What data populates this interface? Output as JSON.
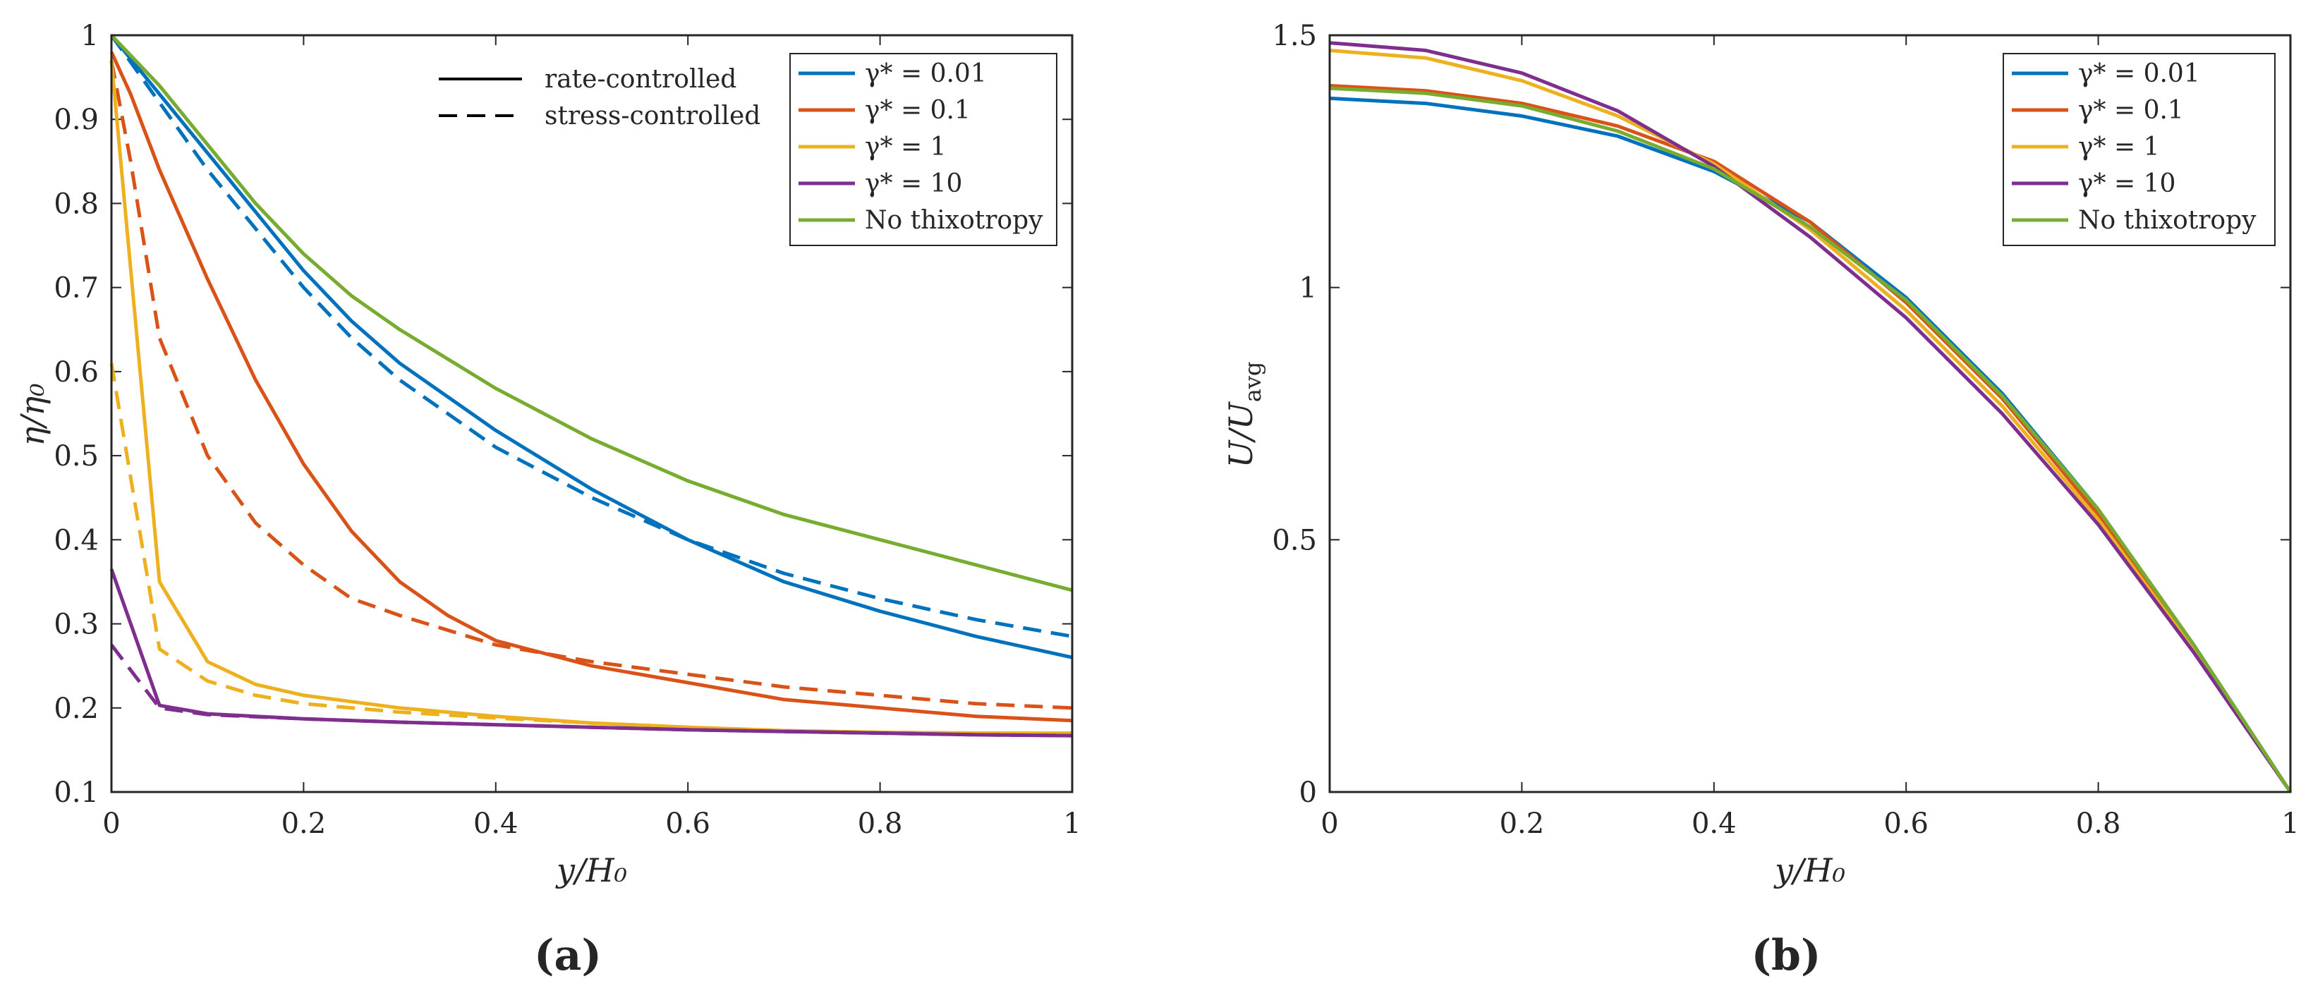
{
  "chart_data": [
    {
      "type": "line",
      "panel_label": "(a)",
      "xlabel": "y/H₀",
      "ylabel": "η/η₀",
      "xlim": [
        0,
        1
      ],
      "ylim": [
        0.1,
        1
      ],
      "xticks": [
        "0",
        "0.2",
        "0.4",
        "0.6",
        "0.8",
        "1"
      ],
      "yticks": [
        "0.1",
        "0.2",
        "0.3",
        "0.4",
        "0.5",
        "0.6",
        "0.7",
        "0.8",
        "0.9",
        "1"
      ],
      "style_legend": [
        {
          "label": "rate-controlled",
          "dash": "solid"
        },
        {
          "label": "stress-controlled",
          "dash": "dashed"
        }
      ],
      "legend": [
        "γ* = 0.01",
        "γ* = 0.1",
        "γ* = 1",
        "γ* = 10",
        "No thixotropy"
      ],
      "series": [
        {
          "name": "γ* = 0.01",
          "mode": "rate-controlled",
          "color": "#0072BD",
          "dash": "solid",
          "x": [
            0,
            0.05,
            0.1,
            0.15,
            0.2,
            0.25,
            0.3,
            0.4,
            0.5,
            0.6,
            0.7,
            0.8,
            0.9,
            1.0
          ],
          "y": [
            1.0,
            0.93,
            0.86,
            0.79,
            0.72,
            0.66,
            0.61,
            0.53,
            0.46,
            0.4,
            0.35,
            0.315,
            0.285,
            0.26
          ]
        },
        {
          "name": "γ* = 0.01",
          "mode": "stress-controlled",
          "color": "#0072BD",
          "dash": "dashed",
          "x": [
            0,
            0.05,
            0.1,
            0.15,
            0.2,
            0.25,
            0.3,
            0.4,
            0.5,
            0.6,
            0.7,
            0.8,
            0.9,
            1.0
          ],
          "y": [
            1.0,
            0.92,
            0.84,
            0.77,
            0.7,
            0.64,
            0.59,
            0.51,
            0.45,
            0.4,
            0.36,
            0.33,
            0.305,
            0.285
          ]
        },
        {
          "name": "γ* = 0.1",
          "mode": "rate-controlled",
          "color": "#D95319",
          "dash": "solid",
          "x": [
            0,
            0.02,
            0.05,
            0.1,
            0.15,
            0.2,
            0.25,
            0.3,
            0.35,
            0.4,
            0.5,
            0.6,
            0.7,
            0.8,
            0.9,
            1.0
          ],
          "y": [
            0.98,
            0.93,
            0.84,
            0.71,
            0.59,
            0.49,
            0.41,
            0.35,
            0.31,
            0.28,
            0.25,
            0.23,
            0.21,
            0.2,
            0.19,
            0.185
          ]
        },
        {
          "name": "γ* = 0.1",
          "mode": "stress-controlled",
          "color": "#D95319",
          "dash": "dashed",
          "x": [
            0,
            0.02,
            0.05,
            0.1,
            0.15,
            0.2,
            0.25,
            0.3,
            0.4,
            0.5,
            0.6,
            0.7,
            0.8,
            0.9,
            1.0
          ],
          "y": [
            0.97,
            0.85,
            0.64,
            0.5,
            0.42,
            0.37,
            0.33,
            0.31,
            0.275,
            0.255,
            0.24,
            0.225,
            0.215,
            0.205,
            0.2
          ]
        },
        {
          "name": "γ* = 1",
          "mode": "rate-controlled",
          "color": "#EDB120",
          "dash": "solid",
          "x": [
            0,
            0.05,
            0.1,
            0.15,
            0.2,
            0.3,
            0.4,
            0.5,
            0.6,
            0.7,
            0.8,
            0.9,
            1.0
          ],
          "y": [
            0.97,
            0.35,
            0.255,
            0.228,
            0.215,
            0.2,
            0.19,
            0.182,
            0.177,
            0.173,
            0.171,
            0.17,
            0.17
          ]
        },
        {
          "name": "γ* = 1",
          "mode": "stress-controlled",
          "color": "#EDB120",
          "dash": "dashed",
          "x": [
            0,
            0.05,
            0.1,
            0.15,
            0.2,
            0.3,
            0.4,
            0.5,
            0.6,
            0.7,
            0.8,
            0.9,
            1.0
          ],
          "y": [
            0.61,
            0.27,
            0.232,
            0.215,
            0.205,
            0.195,
            0.188,
            0.182,
            0.177,
            0.173,
            0.171,
            0.17,
            0.17
          ]
        },
        {
          "name": "γ* = 10",
          "mode": "rate-controlled",
          "color": "#7E2F8E",
          "dash": "solid",
          "x": [
            0,
            0.05,
            0.1,
            0.2,
            0.3,
            0.4,
            0.5,
            0.6,
            0.7,
            0.8,
            0.9,
            1.0
          ],
          "y": [
            0.365,
            0.203,
            0.193,
            0.187,
            0.183,
            0.18,
            0.177,
            0.174,
            0.172,
            0.17,
            0.168,
            0.167
          ]
        },
        {
          "name": "γ* = 10",
          "mode": "stress-controlled",
          "color": "#7E2F8E",
          "dash": "dashed",
          "x": [
            0,
            0.05,
            0.1,
            0.2,
            0.3,
            0.4,
            0.5,
            0.6,
            0.7,
            0.8,
            0.9,
            1.0
          ],
          "y": [
            0.275,
            0.2,
            0.192,
            0.187,
            0.183,
            0.18,
            0.177,
            0.174,
            0.172,
            0.17,
            0.168,
            0.167
          ]
        },
        {
          "name": "No thixotropy",
          "mode": "rate-controlled",
          "color": "#77AC30",
          "dash": "solid",
          "x": [
            0,
            0.05,
            0.1,
            0.15,
            0.2,
            0.25,
            0.3,
            0.4,
            0.5,
            0.6,
            0.7,
            0.8,
            0.9,
            1.0
          ],
          "y": [
            1.0,
            0.94,
            0.87,
            0.8,
            0.74,
            0.69,
            0.65,
            0.58,
            0.52,
            0.47,
            0.43,
            0.4,
            0.37,
            0.34
          ]
        }
      ]
    },
    {
      "type": "line",
      "panel_label": "(b)",
      "xlabel": "y/H₀",
      "ylabel": "U/U",
      "ylabel_subscript": "avg",
      "xlim": [
        0,
        1
      ],
      "ylim": [
        0,
        1.5
      ],
      "xticks": [
        "0",
        "0.2",
        "0.4",
        "0.6",
        "0.8",
        "1"
      ],
      "yticks": [
        "0",
        "0.5",
        "1",
        "1.5"
      ],
      "legend": [
        "γ* = 0.01",
        "γ* = 0.1",
        "γ* = 1",
        "γ* = 10",
        "No thixotropy"
      ],
      "series": [
        {
          "name": "γ* = 0.01",
          "color": "#0072BD",
          "x": [
            0,
            0.1,
            0.2,
            0.3,
            0.4,
            0.5,
            0.6,
            0.7,
            0.8,
            0.9,
            1.0
          ],
          "y": [
            1.375,
            1.365,
            1.34,
            1.3,
            1.23,
            1.13,
            0.98,
            0.79,
            0.56,
            0.29,
            0.0
          ]
        },
        {
          "name": "γ* = 0.1",
          "color": "#D95319",
          "x": [
            0,
            0.1,
            0.2,
            0.3,
            0.4,
            0.5,
            0.6,
            0.7,
            0.8,
            0.9,
            1.0
          ],
          "y": [
            1.4,
            1.39,
            1.365,
            1.32,
            1.25,
            1.13,
            0.97,
            0.78,
            0.55,
            0.285,
            0.0
          ]
        },
        {
          "name": "γ* = 1",
          "color": "#EDB120",
          "x": [
            0,
            0.1,
            0.2,
            0.3,
            0.4,
            0.5,
            0.6,
            0.7,
            0.8,
            0.9,
            1.0
          ],
          "y": [
            1.47,
            1.455,
            1.41,
            1.34,
            1.245,
            1.115,
            0.955,
            0.765,
            0.54,
            0.28,
            0.0
          ]
        },
        {
          "name": "γ* = 10",
          "color": "#7E2F8E",
          "x": [
            0,
            0.1,
            0.2,
            0.3,
            0.4,
            0.5,
            0.6,
            0.7,
            0.8,
            0.9,
            1.0
          ],
          "y": [
            1.485,
            1.47,
            1.425,
            1.35,
            1.24,
            1.1,
            0.94,
            0.75,
            0.53,
            0.275,
            0.0
          ]
        },
        {
          "name": "No thixotropy",
          "color": "#77AC30",
          "x": [
            0,
            0.1,
            0.2,
            0.3,
            0.4,
            0.5,
            0.6,
            0.7,
            0.8,
            0.9,
            1.0
          ],
          "y": [
            1.395,
            1.385,
            1.36,
            1.31,
            1.235,
            1.12,
            0.975,
            0.785,
            0.56,
            0.29,
            0.0
          ]
        }
      ]
    }
  ]
}
